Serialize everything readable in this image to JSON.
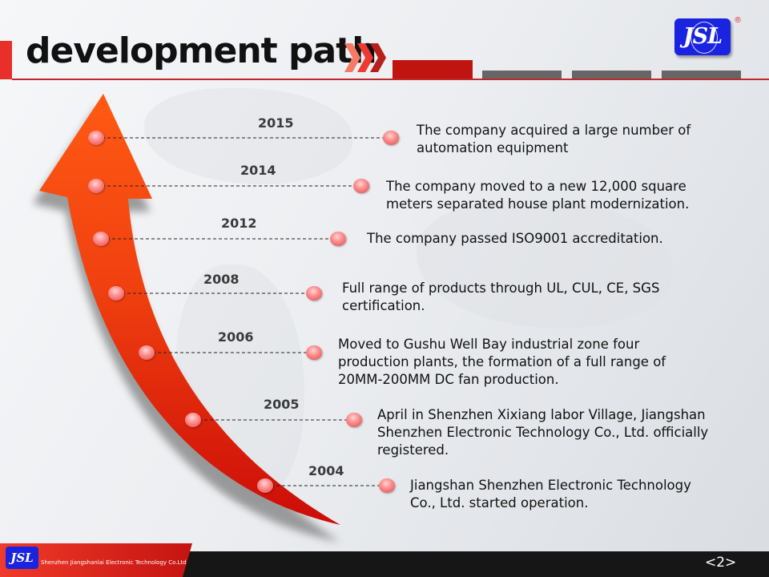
{
  "header": {
    "title": "development path",
    "logo_text": "JSL",
    "registered_mark": "®"
  },
  "colors": {
    "accent_red": "#bf1410",
    "arrow_top": "#ff5a14",
    "arrow_bottom": "#cc0c08",
    "node_pink": "#ff8a8a",
    "segment_gray": "#666666"
  },
  "timeline": [
    {
      "year": "2015",
      "text_lines": [
        "The company acquired a large number of",
        "automation equipment"
      ]
    },
    {
      "year": "2014",
      "text_lines": [
        "The company moved to a new 12,000 square",
        "meters separated house plant modernization."
      ]
    },
    {
      "year": "2012",
      "text_lines": [
        "The company passed ISO9001 accreditation."
      ]
    },
    {
      "year": "2008",
      "text_lines": [
        "Full range of products through UL, CUL, CE, SGS",
        "certification."
      ]
    },
    {
      "year": "2006",
      "text_lines": [
        "Moved to Gushu Well Bay industrial zone four",
        "production plants, the formation of a full range of",
        "20MM-200MM DC fan production."
      ]
    },
    {
      "year": "2005",
      "text_lines": [
        "April in Shenzhen Xixiang labor Village, Jiangshan",
        "Shenzhen Electronic Technology Co., Ltd. officially",
        "registered."
      ]
    },
    {
      "year": "2004",
      "text_lines": [
        "Jiangshan Shenzhen Electronic Technology",
        "Co., Ltd. started operation."
      ]
    }
  ],
  "footer": {
    "logo_text": "JSL",
    "company": "Shenzhen Jiangshanlai Electronic Technology Co.Ltd",
    "page_number": "<2>"
  }
}
